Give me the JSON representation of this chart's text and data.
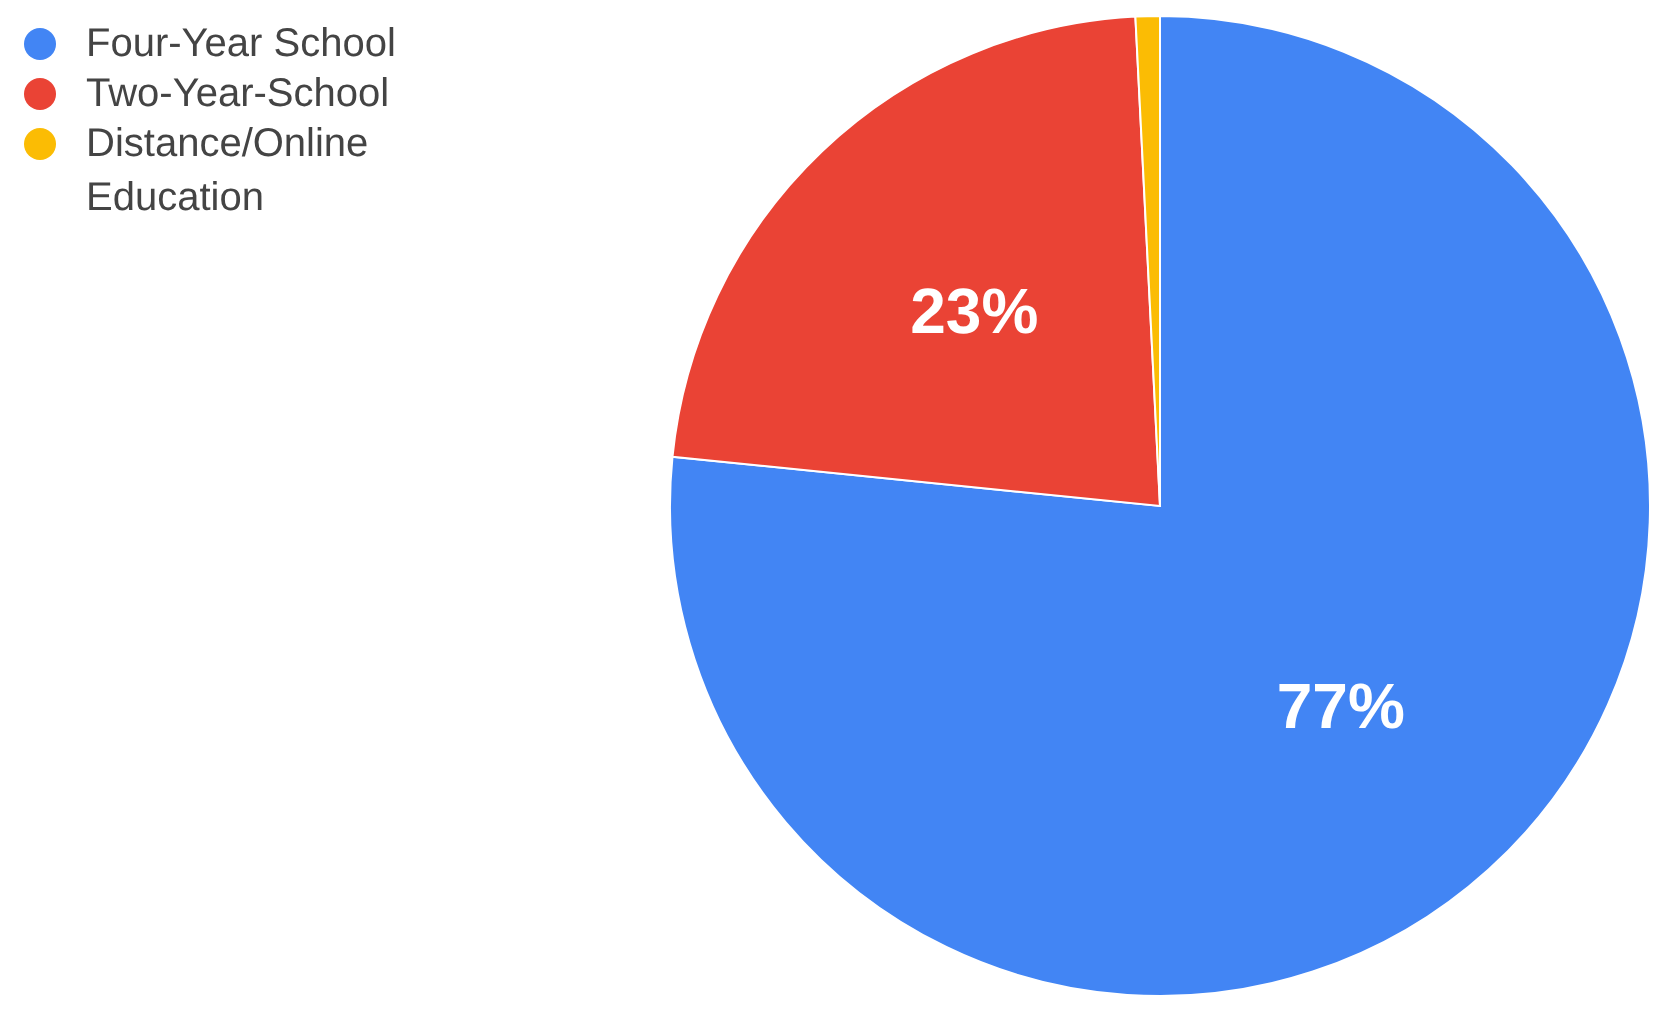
{
  "chart_data": {
    "type": "pie",
    "categories": [
      "Four-Year School",
      "Two-Year-School",
      "Distance/Online Education"
    ],
    "values": [
      76.6,
      22.6,
      0.8
    ],
    "colors": [
      "#4285f4",
      "#ea4335",
      "#fbbc04"
    ],
    "value_labels": [
      "77%",
      "23%",
      null
    ],
    "legend": "top left"
  }
}
